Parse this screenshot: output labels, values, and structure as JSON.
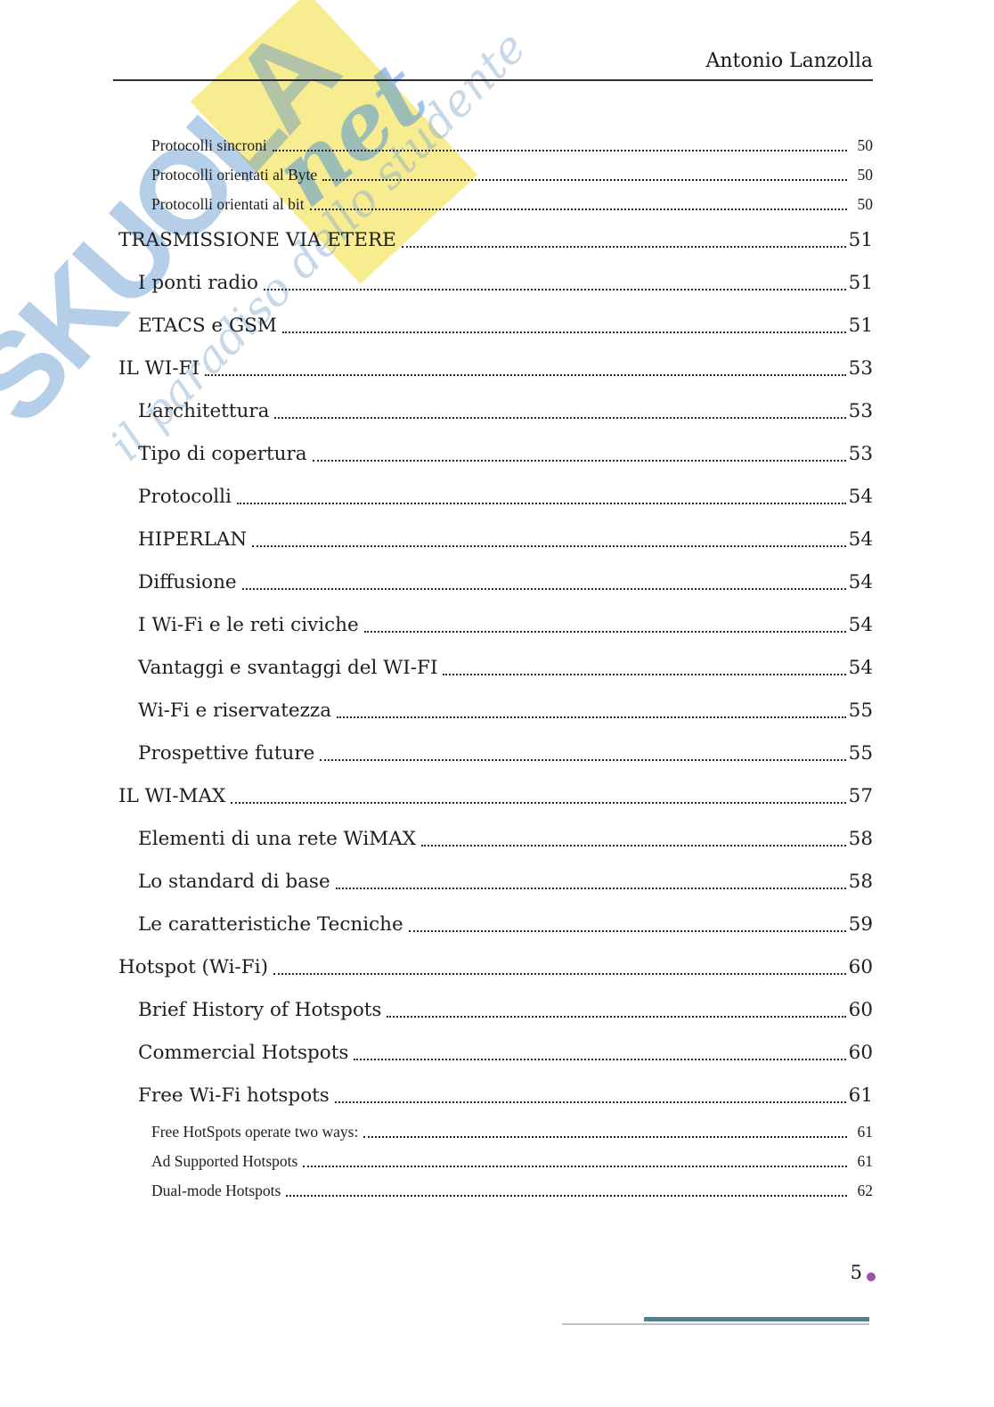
{
  "header": {
    "author": "Antonio Lanzolla"
  },
  "watermark": {
    "brand": "SKUOLA",
    "brand_suffix": "net",
    "tagline": "il paradiso dello studente"
  },
  "toc": {
    "entries": [
      {
        "level": 3,
        "label": "Protocolli sincroni",
        "page": "50"
      },
      {
        "level": 3,
        "label": "Protocolli orientati al Byte",
        "page": "50"
      },
      {
        "level": 3,
        "label": "Protocolli orientati al bit",
        "page": "50"
      },
      {
        "level": 1,
        "label": "TRASMISSIONE VIA ETERE",
        "page": "51"
      },
      {
        "level": 2,
        "label": "I ponti radio",
        "page": "51"
      },
      {
        "level": 2,
        "label": "ETACS e GSM",
        "page": "51"
      },
      {
        "level": 1,
        "label": "IL WI-FI",
        "page": "53"
      },
      {
        "level": 2,
        "label": "L’architettura",
        "page": "53"
      },
      {
        "level": 2,
        "label": "Tipo di copertura",
        "page": "53"
      },
      {
        "level": 2,
        "label": "Protocolli",
        "page": "54"
      },
      {
        "level": 2,
        "label": "HIPERLAN",
        "page": "54"
      },
      {
        "level": 2,
        "label": "Diffusione",
        "page": "54"
      },
      {
        "level": 2,
        "label": "I Wi-Fi e le reti civiche",
        "page": "54"
      },
      {
        "level": 2,
        "label": "Vantaggi e svantaggi del WI-FI",
        "page": "54"
      },
      {
        "level": 2,
        "label": "Wi-Fi e riservatezza",
        "page": "55"
      },
      {
        "level": 2,
        "label": "Prospettive future",
        "page": "55"
      },
      {
        "level": 1,
        "label": "IL WI-MAX",
        "page": "57"
      },
      {
        "level": 2,
        "label": "Elementi di una rete WiMAX",
        "page": "58"
      },
      {
        "level": 2,
        "label": "Lo standard di base",
        "page": "58"
      },
      {
        "level": 2,
        "label": "Le caratteristiche Tecniche",
        "page": "59"
      },
      {
        "level": 1,
        "label": "Hotspot (Wi-Fi)",
        "page": "60"
      },
      {
        "level": 2,
        "label": "Brief History of Hotspots",
        "page": "60"
      },
      {
        "level": 2,
        "label": "Commercial Hotspots",
        "page": "60"
      },
      {
        "level": 2,
        "label": "Free Wi-Fi hotspots",
        "page": "61"
      },
      {
        "level": 3,
        "label": "Free HotSpots operate two ways:",
        "page": "61"
      },
      {
        "level": 3,
        "label": "Ad Supported Hotspots",
        "page": "61"
      },
      {
        "level": 3,
        "label": "Dual-mode Hotspots",
        "page": "62"
      }
    ]
  },
  "footer": {
    "page_number": "5"
  },
  "colors": {
    "teal": "#54808d",
    "dot-purple": "#9d52ab",
    "wm-yellow": "rgba(246,233,125,0.85)",
    "wm-blue": "rgba(80,140,200,0.42)",
    "wm-blue2": "rgba(70,145,215,0.52)",
    "wm-blue3": "rgba(130,170,205,0.45)"
  }
}
